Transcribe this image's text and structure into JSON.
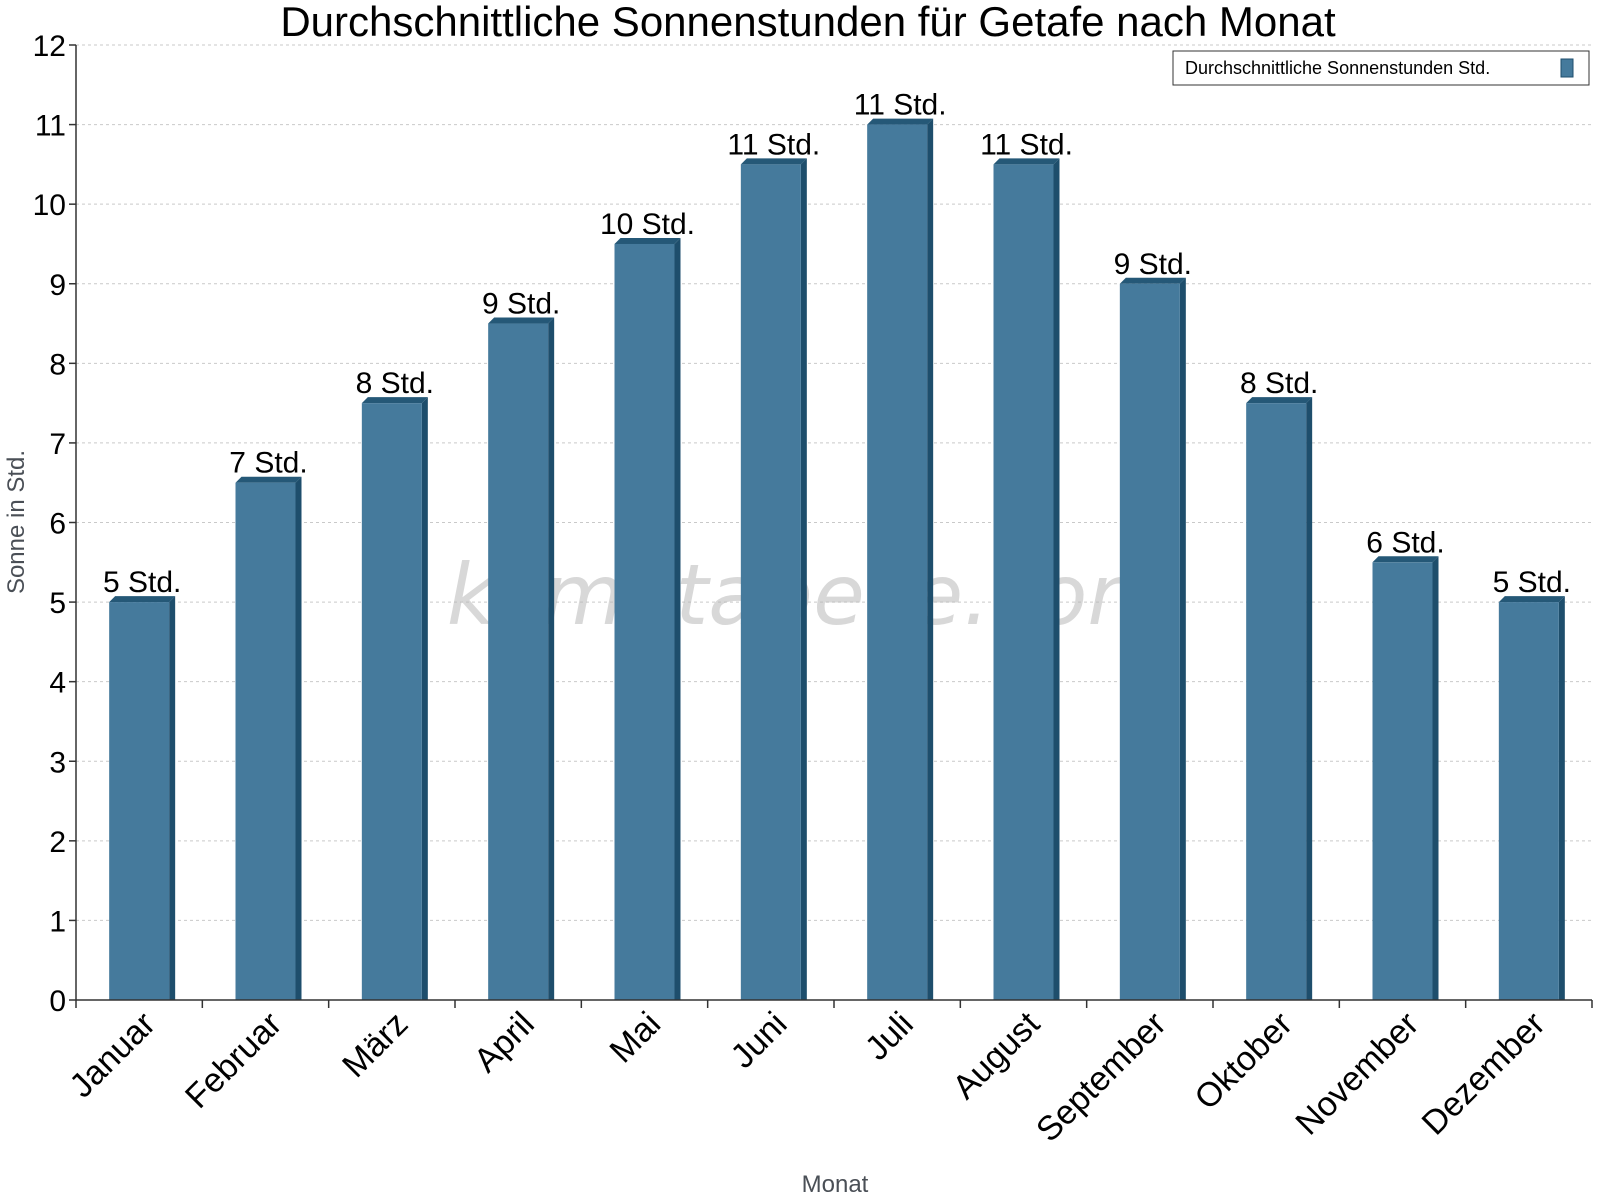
{
  "chart_data": {
    "type": "bar",
    "title": "Durchschnittliche Sonnenstunden für Getafe nach Monat",
    "xlabel": "Monat",
    "ylabel": "Sonne in Std.",
    "ylim": [
      0,
      12
    ],
    "yticks": [
      "0",
      "1",
      "2",
      "3",
      "4",
      "5",
      "6",
      "7",
      "8",
      "9",
      "10",
      "11",
      "12"
    ],
    "grid": true,
    "legend_position": "top-right",
    "categories": [
      "Januar",
      "Februar",
      "März",
      "April",
      "Mai",
      "Juni",
      "Juli",
      "August",
      "September",
      "Oktober",
      "November",
      "Dezember"
    ],
    "series": [
      {
        "name": "Durchschnittliche Sonnenstunden Std.",
        "values": [
          5,
          6.5,
          7.5,
          8.5,
          9.5,
          10.5,
          11,
          10.5,
          9,
          7.5,
          5.5,
          5
        ],
        "labels": [
          "5 Std.",
          "7 Std.",
          "8 Std.",
          "9 Std.",
          "10 Std.",
          "11 Std.",
          "11 Std.",
          "11 Std.",
          "9 Std.",
          "8 Std.",
          "6 Std.",
          "5 Std."
        ]
      }
    ],
    "colors": {
      "bar": "#457a9c",
      "bar_side": "#1e4e6c",
      "bar_top": "#255877"
    },
    "watermark": "klimatabelle.com"
  }
}
